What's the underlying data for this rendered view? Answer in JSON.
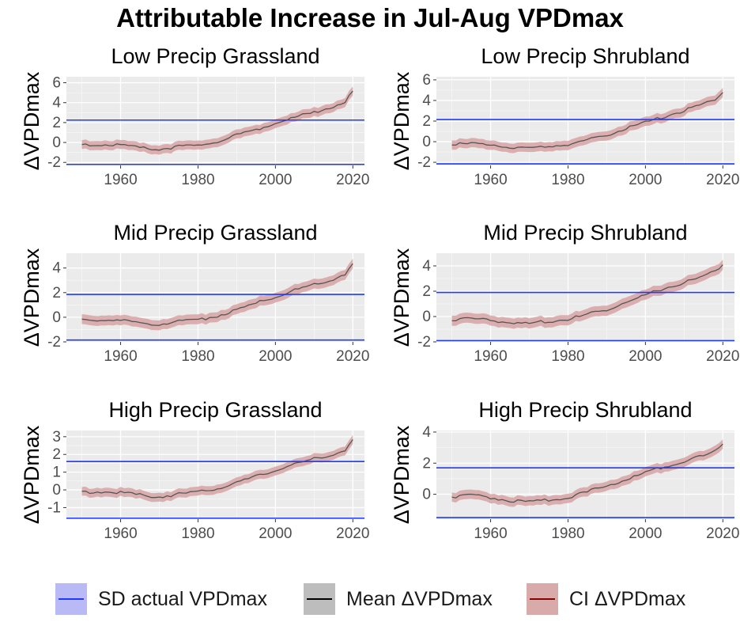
{
  "title": "Attributable Increase in Jul-Aug VPDmax",
  "legend": {
    "items": [
      {
        "label": "SD actual VPDmax",
        "line_color": "#1f3bff",
        "fill_color": "#b9b9f5"
      },
      {
        "label": "Mean ΔVPDmax",
        "line_color": "#000000",
        "fill_color": "#bdbdbd"
      },
      {
        "label": "CI ΔVPDmax",
        "line_color": "#8b0000",
        "fill_color": "#d9aaaa"
      }
    ]
  },
  "colors": {
    "panel_bg": "#ebebeb",
    "grid": "#ffffff",
    "sd_line": "#1f3bff",
    "mean_line": "#555555",
    "ci_fill": "#d7a3a3"
  },
  "chart_data": [
    {
      "type": "line",
      "title": "Low Precip Grassland",
      "ylabel": "ΔVPDmax",
      "xlim": [
        1946,
        2023
      ],
      "ylim": [
        -2.3,
        6.6
      ],
      "xticks": [
        1960,
        1980,
        2000,
        2020
      ],
      "yticks": [
        -2,
        0,
        2,
        4,
        6
      ],
      "sd_lines": [
        2.25,
        -2.2
      ],
      "x_knots": [
        1950,
        1955,
        1960,
        1965,
        1970,
        1975,
        1980,
        1985,
        1990,
        1995,
        2000,
        2005,
        2010,
        2015,
        2018,
        2020
      ],
      "mean_knots": [
        -0.2,
        -0.1,
        -0.2,
        -0.45,
        -0.6,
        -0.35,
        -0.2,
        0.2,
        0.8,
        1.4,
        2.0,
        2.6,
        3.1,
        3.7,
        4.2,
        5.1
      ],
      "ci_halfwidth": 0.45
    },
    {
      "type": "line",
      "title": "Low Precip Shrubland",
      "ylabel": "ΔVPDmax",
      "xlim": [
        1946,
        2023
      ],
      "ylim": [
        -2.3,
        6.3
      ],
      "xticks": [
        1960,
        1980,
        2000,
        2020
      ],
      "yticks": [
        -2,
        0,
        2,
        4,
        6
      ],
      "sd_lines": [
        2.15,
        -2.15
      ],
      "x_knots": [
        1950,
        1955,
        1960,
        1965,
        1970,
        1975,
        1980,
        1985,
        1990,
        1995,
        2000,
        2005,
        2010,
        2015,
        2018,
        2020
      ],
      "mean_knots": [
        -0.2,
        -0.1,
        -0.2,
        -0.45,
        -0.55,
        -0.35,
        -0.15,
        0.2,
        0.75,
        1.35,
        1.95,
        2.55,
        3.1,
        3.7,
        4.1,
        4.9
      ],
      "ci_halfwidth": 0.45
    },
    {
      "type": "line",
      "title": "Mid Precip Grassland",
      "ylabel": "ΔVPDmax",
      "xlim": [
        1946,
        2023
      ],
      "ylim": [
        -2.0,
        5.2
      ],
      "xticks": [
        1960,
        1980,
        2000,
        2020
      ],
      "yticks": [
        -2,
        0,
        2,
        4
      ],
      "sd_lines": [
        1.85,
        -1.85
      ],
      "x_knots": [
        1950,
        1955,
        1960,
        1965,
        1970,
        1975,
        1980,
        1985,
        1990,
        1995,
        2000,
        2005,
        2010,
        2015,
        2018,
        2020
      ],
      "mean_knots": [
        -0.2,
        -0.1,
        -0.2,
        -0.4,
        -0.5,
        -0.3,
        -0.15,
        0.2,
        0.65,
        1.2,
        1.75,
        2.25,
        2.7,
        3.2,
        3.6,
        4.3
      ],
      "ci_halfwidth": 0.4
    },
    {
      "type": "line",
      "title": "Mid Precip Shrubland",
      "ylabel": "ΔVPDmax",
      "xlim": [
        1946,
        2023
      ],
      "ylim": [
        -2.0,
        5.0
      ],
      "xticks": [
        1960,
        1980,
        2000,
        2020
      ],
      "yticks": [
        -2,
        0,
        2,
        4
      ],
      "sd_lines": [
        1.9,
        -1.9
      ],
      "x_knots": [
        1950,
        1955,
        1960,
        1965,
        1970,
        1975,
        1980,
        1985,
        1990,
        1995,
        2000,
        2005,
        2010,
        2015,
        2018,
        2020
      ],
      "mean_knots": [
        -0.2,
        -0.1,
        -0.2,
        -0.4,
        -0.5,
        -0.3,
        -0.15,
        0.2,
        0.65,
        1.2,
        1.75,
        2.3,
        2.75,
        3.2,
        3.6,
        4.3
      ],
      "ci_halfwidth": 0.4
    },
    {
      "type": "line",
      "title": "High Precip Grassland",
      "ylabel": "ΔVPDmax",
      "xlim": [
        1946,
        2023
      ],
      "ylim": [
        -1.65,
        3.35
      ],
      "xticks": [
        1960,
        1980,
        2000,
        2020
      ],
      "yticks": [
        -1,
        0,
        1,
        2,
        3
      ],
      "sd_lines": [
        1.6,
        -1.6
      ],
      "x_knots": [
        1950,
        1955,
        1960,
        1965,
        1970,
        1975,
        1980,
        1985,
        1990,
        1995,
        2000,
        2005,
        2010,
        2015,
        2018,
        2020
      ],
      "mean_knots": [
        -0.1,
        -0.05,
        -0.12,
        -0.25,
        -0.35,
        -0.2,
        -0.1,
        0.15,
        0.45,
        0.8,
        1.15,
        1.5,
        1.8,
        2.05,
        2.3,
        2.8
      ],
      "ci_halfwidth": 0.25
    },
    {
      "type": "line",
      "title": "High Precip Shrubland",
      "ylabel": "ΔVPDmax",
      "xlim": [
        1946,
        2023
      ],
      "ylim": [
        -1.6,
        4.1
      ],
      "xticks": [
        1960,
        1980,
        2000,
        2020
      ],
      "yticks": [
        0,
        2,
        4
      ],
      "sd_lines": [
        1.7,
        -1.5
      ],
      "x_knots": [
        1950,
        1955,
        1960,
        1965,
        1970,
        1975,
        1980,
        1985,
        1990,
        1995,
        2000,
        2005,
        2010,
        2015,
        2018,
        2020
      ],
      "mean_knots": [
        -0.1,
        -0.05,
        -0.15,
        -0.35,
        -0.45,
        -0.3,
        -0.15,
        0.2,
        0.6,
        1.0,
        1.4,
        1.85,
        2.2,
        2.5,
        2.8,
        3.3
      ],
      "ci_halfwidth": 0.3
    }
  ]
}
